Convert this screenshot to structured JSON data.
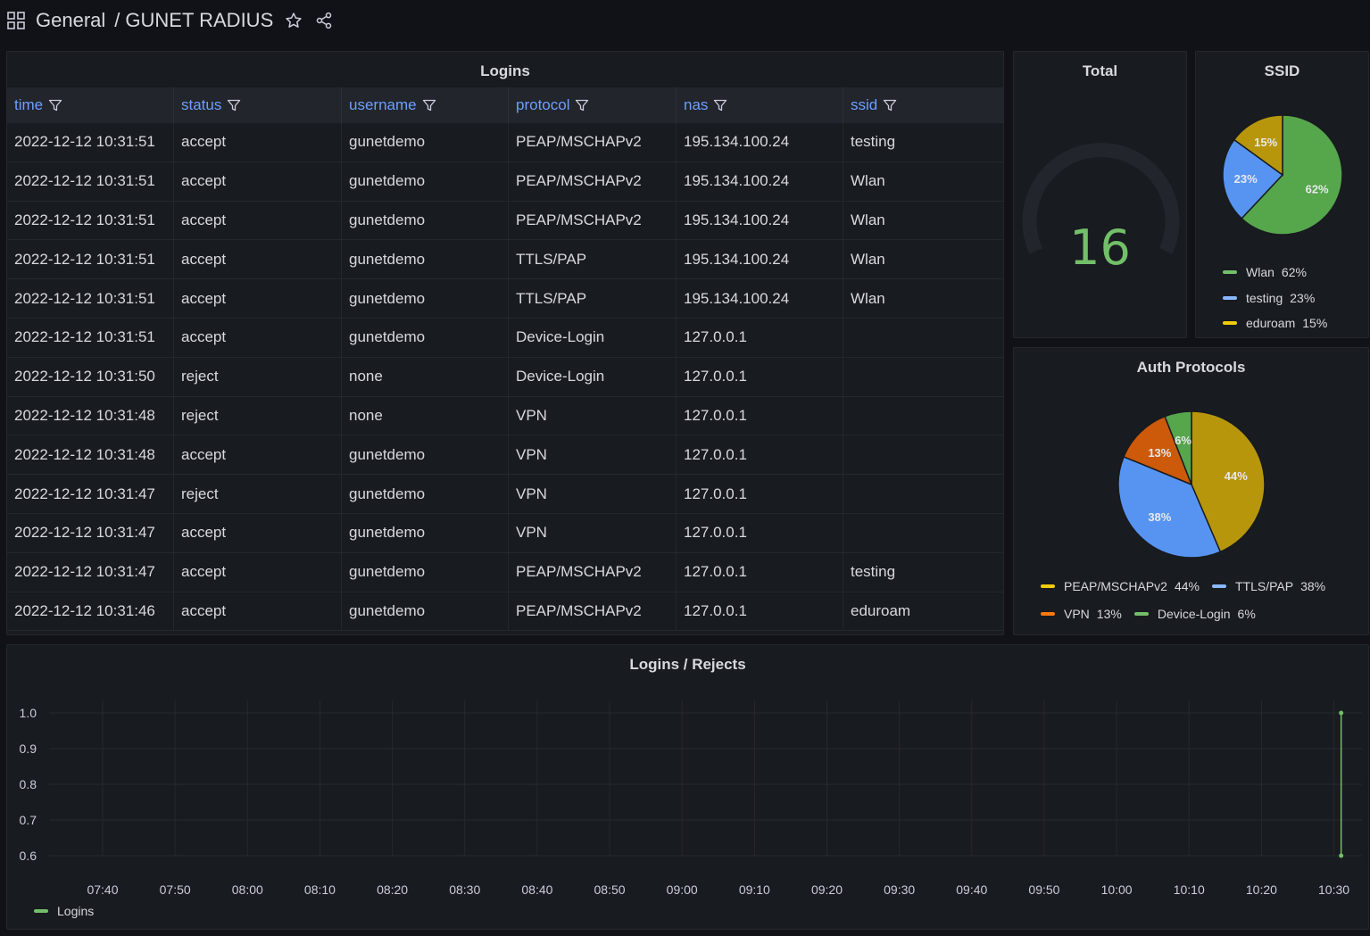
{
  "header": {
    "folder": "General",
    "title": "GUNET RADIUS"
  },
  "logins_panel": {
    "title": "Logins",
    "columns": [
      "time",
      "status",
      "username",
      "protocol",
      "nas",
      "ssid"
    ],
    "rows": [
      [
        "2022-12-12 10:31:51",
        "accept",
        "gunetdemo",
        "PEAP/MSCHAPv2",
        "195.134.100.24",
        "testing"
      ],
      [
        "2022-12-12 10:31:51",
        "accept",
        "gunetdemo",
        "PEAP/MSCHAPv2",
        "195.134.100.24",
        "Wlan"
      ],
      [
        "2022-12-12 10:31:51",
        "accept",
        "gunetdemo",
        "PEAP/MSCHAPv2",
        "195.134.100.24",
        "Wlan"
      ],
      [
        "2022-12-12 10:31:51",
        "accept",
        "gunetdemo",
        "TTLS/PAP",
        "195.134.100.24",
        "Wlan"
      ],
      [
        "2022-12-12 10:31:51",
        "accept",
        "gunetdemo",
        "TTLS/PAP",
        "195.134.100.24",
        "Wlan"
      ],
      [
        "2022-12-12 10:31:51",
        "accept",
        "gunetdemo",
        "Device-Login",
        "127.0.0.1",
        ""
      ],
      [
        "2022-12-12 10:31:50",
        "reject",
        "none",
        "Device-Login",
        "127.0.0.1",
        ""
      ],
      [
        "2022-12-12 10:31:48",
        "reject",
        "none",
        "VPN",
        "127.0.0.1",
        ""
      ],
      [
        "2022-12-12 10:31:48",
        "accept",
        "gunetdemo",
        "VPN",
        "127.0.0.1",
        ""
      ],
      [
        "2022-12-12 10:31:47",
        "reject",
        "gunetdemo",
        "VPN",
        "127.0.0.1",
        ""
      ],
      [
        "2022-12-12 10:31:47",
        "accept",
        "gunetdemo",
        "VPN",
        "127.0.0.1",
        ""
      ],
      [
        "2022-12-12 10:31:47",
        "accept",
        "gunetdemo",
        "PEAP/MSCHAPv2",
        "127.0.0.1",
        "testing"
      ],
      [
        "2022-12-12 10:31:46",
        "accept",
        "gunetdemo",
        "PEAP/MSCHAPv2",
        "127.0.0.1",
        "eduroam"
      ]
    ]
  },
  "total_panel": {
    "title": "Total",
    "value": "16",
    "color": "#73bf69"
  },
  "ssid_panel": {
    "title": "SSID",
    "legend": [
      {
        "name": "Wlan",
        "value": "62%",
        "color": "#73bf69"
      },
      {
        "name": "testing",
        "value": "23%",
        "color": "#8ab8ff"
      },
      {
        "name": "eduroam",
        "value": "15%",
        "color": "#f2cc0c"
      }
    ]
  },
  "auth_panel": {
    "title": "Auth Protocols",
    "legend": [
      {
        "name": "PEAP/MSCHAPv2",
        "value": "44%",
        "color": "#f2cc0c"
      },
      {
        "name": "TTLS/PAP",
        "value": "38%",
        "color": "#8ab8ff"
      },
      {
        "name": "VPN",
        "value": "13%",
        "color": "#ff780a"
      },
      {
        "name": "Device-Login",
        "value": "6%",
        "color": "#73bf69"
      }
    ]
  },
  "timeseries_panel": {
    "title": "Logins / Rejects",
    "legend": [
      {
        "name": "Logins",
        "color": "#73bf69"
      }
    ]
  },
  "chart_data": [
    {
      "type": "pie",
      "title": "SSID",
      "categories": [
        "Wlan",
        "testing",
        "eduroam"
      ],
      "values": [
        62,
        23,
        15
      ],
      "slice_colors": [
        "#56a64b",
        "#5794f2",
        "#b8960c"
      ],
      "legend_position": "bottom"
    },
    {
      "type": "pie",
      "title": "Auth Protocols",
      "categories": [
        "PEAP/MSCHAPv2",
        "TTLS/PAP",
        "VPN",
        "Device-Login"
      ],
      "values": [
        44,
        38,
        13,
        6
      ],
      "slice_colors": [
        "#b8960c",
        "#5794f2",
        "#cc5a0a",
        "#56a64b"
      ],
      "legend_position": "bottom"
    },
    {
      "type": "line",
      "title": "Logins / Rejects",
      "x_ticks": [
        "07:40",
        "07:50",
        "08:00",
        "08:10",
        "08:20",
        "08:30",
        "08:40",
        "08:50",
        "09:00",
        "09:10",
        "09:20",
        "09:30",
        "09:40",
        "09:50",
        "10:00",
        "10:10",
        "10:20",
        "10:30"
      ],
      "y_ticks": [
        "1.0",
        "0.9",
        "0.8",
        "0.7",
        "0.6"
      ],
      "ylim": [
        0.6,
        1.0
      ],
      "series": [
        {
          "name": "Logins",
          "color": "#73bf69",
          "points": [
            {
              "x": "10:31",
              "y": 1.0
            },
            {
              "x": "10:31",
              "y": 0.6
            }
          ]
        }
      ],
      "grid": true,
      "legend_position": "bottom-left"
    }
  ]
}
